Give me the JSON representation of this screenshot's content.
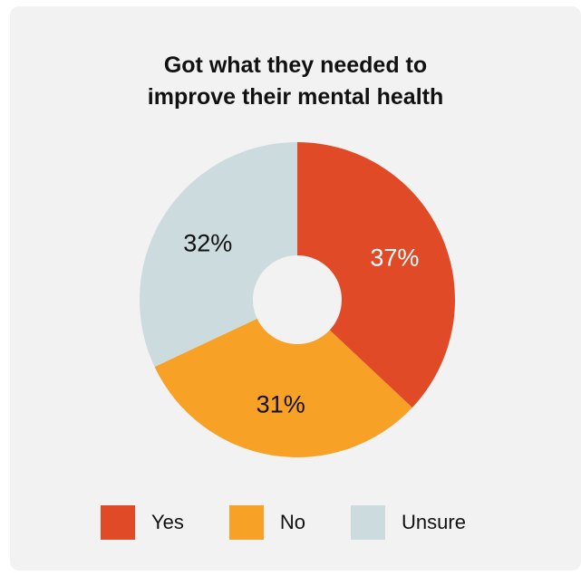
{
  "chart_data": {
    "type": "pie",
    "title": [
      "Got what they needed to",
      "improve their mental health"
    ],
    "donut": true,
    "slices": [
      {
        "label": "Yes",
        "value": 37,
        "display": "37%",
        "color": "#E04A27",
        "text_color": "#ffffff"
      },
      {
        "label": "No",
        "value": 31,
        "display": "31%",
        "color": "#F7A126",
        "text_color": "#111111"
      },
      {
        "label": "Unsure",
        "value": 32,
        "display": "32%",
        "color": "#CCDBDD",
        "text_color": "#111111"
      }
    ],
    "legend": {
      "placement": "bottom",
      "items": [
        {
          "label": "Yes",
          "color": "#E04A27"
        },
        {
          "label": "No",
          "color": "#F7A126"
        },
        {
          "label": "Unsure",
          "color": "#CCDBDD"
        }
      ]
    }
  }
}
